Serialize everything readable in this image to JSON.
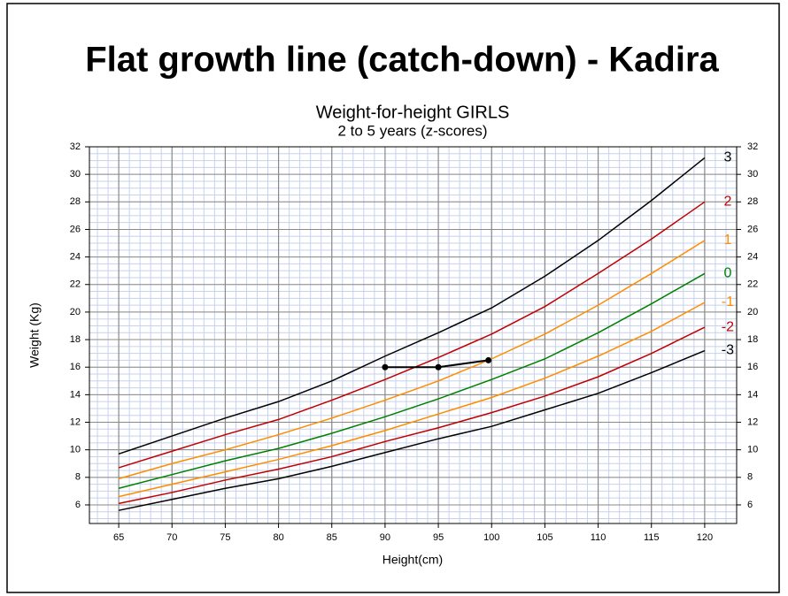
{
  "chart_data": {
    "type": "line",
    "title": "Flat growth line (catch-down) - Kadira",
    "subtitle": [
      "Weight-for-height GIRLS",
      "2 to 5 years (z-scores)"
    ],
    "x_label": "Height(cm)",
    "y_label": "Weight (Kg)",
    "x": [
      65,
      70,
      75,
      80,
      85,
      90,
      95,
      100,
      105,
      110,
      115,
      120
    ],
    "xlim": [
      62.25,
      123
    ],
    "ylim": [
      4.65,
      32
    ],
    "xticks": [
      65,
      70,
      75,
      80,
      85,
      90,
      95,
      100,
      105,
      110,
      115,
      120
    ],
    "yticks": [
      6,
      8,
      10,
      12,
      14,
      16,
      18,
      20,
      22,
      24,
      26,
      28,
      30,
      32
    ],
    "grid": true,
    "minor_grid": true,
    "right_axis": true,
    "series": [
      {
        "name": "3",
        "color": "#000000",
        "values": [
          9.7,
          11.0,
          12.3,
          13.5,
          15.0,
          16.8,
          18.5,
          20.3,
          22.6,
          25.2,
          28.1,
          31.2
        ]
      },
      {
        "name": "2",
        "color": "#c00000",
        "values": [
          8.7,
          9.9,
          11.1,
          12.2,
          13.6,
          15.1,
          16.7,
          18.4,
          20.4,
          22.8,
          25.3,
          28.0
        ]
      },
      {
        "name": "1",
        "color": "#ff8c00",
        "values": [
          7.9,
          9.0,
          10.0,
          11.1,
          12.3,
          13.6,
          15.0,
          16.6,
          18.4,
          20.5,
          22.8,
          25.2
        ]
      },
      {
        "name": "0",
        "color": "#008000",
        "values": [
          7.2,
          8.2,
          9.2,
          10.1,
          11.2,
          12.4,
          13.7,
          15.1,
          16.6,
          18.5,
          20.6,
          22.8
        ]
      },
      {
        "name": "-1",
        "color": "#ff8c00",
        "values": [
          6.6,
          7.5,
          8.4,
          9.3,
          10.3,
          11.4,
          12.6,
          13.8,
          15.2,
          16.8,
          18.6,
          20.7
        ]
      },
      {
        "name": "-2",
        "color": "#c00000",
        "values": [
          6.1,
          6.9,
          7.8,
          8.6,
          9.5,
          10.6,
          11.6,
          12.7,
          13.9,
          15.3,
          17.0,
          18.9
        ]
      },
      {
        "name": "-3",
        "color": "#000000",
        "values": [
          5.6,
          6.4,
          7.2,
          7.9,
          8.8,
          9.8,
          10.8,
          11.7,
          12.9,
          14.1,
          15.6,
          17.2
        ]
      }
    ],
    "patient": {
      "color": "#000000",
      "x": [
        90,
        95,
        99.7
      ],
      "values": [
        16,
        16,
        16.5
      ]
    }
  }
}
